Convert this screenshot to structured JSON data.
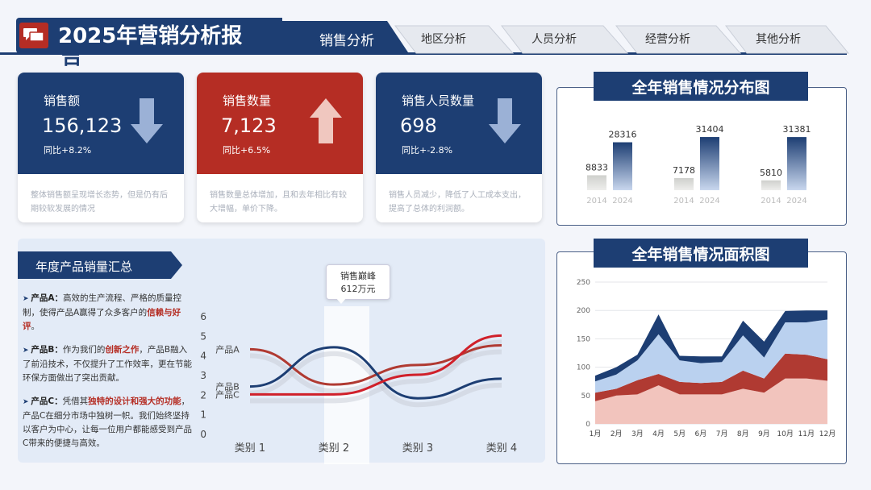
{
  "header": {
    "title": "2025年营销分析报",
    "title_tail": "告",
    "tabs": [
      {
        "label": "销售分析",
        "active": true
      },
      {
        "label": "地区分析"
      },
      {
        "label": "人员分析"
      },
      {
        "label": "经营分析"
      },
      {
        "label": "其他分析"
      }
    ]
  },
  "kpis": [
    {
      "label": "销售额",
      "value": "156,123",
      "yoy": "同比+8.2%",
      "desc": "整体销售额呈现增长态势，但是仍有后期较软发展的情况",
      "trend": "down",
      "color": "#1d3e73"
    },
    {
      "label": "销售数量",
      "value": "7,123",
      "yoy": "同比+6.5%",
      "desc": "销售数量总体增加，且和去年相比有较大增幅，单价下降。",
      "trend": "up",
      "color": "#b52d24"
    },
    {
      "label": "销售人员数量",
      "value": "698",
      "yoy": "同比+-2.8%",
      "desc": "销售人员减少，降低了人工成本支出，提高了总体的利润额。",
      "trend": "down",
      "color": "#1d3e73"
    }
  ],
  "products": {
    "title": "年度产品销量汇总",
    "items": [
      {
        "name": "产品A：",
        "segments": [
          {
            "text": "高效的生产流程、严格的质量控制，使得产品A赢得了众多客户的"
          },
          {
            "text": "信赖与好评",
            "red": true
          },
          {
            "text": "。"
          }
        ]
      },
      {
        "name": "产品B：",
        "segments": [
          {
            "text": "作为我们的"
          },
          {
            "text": "创新之作",
            "red": true
          },
          {
            "text": "，产品B融入了前沿技术，不仅提升了工作效率，更在节能环保方面做出了突出贡献。"
          }
        ]
      },
      {
        "name": "产品C：",
        "segments": [
          {
            "text": "凭借其"
          },
          {
            "text": "独特的设计和强大的功能",
            "red": true
          },
          {
            "text": "，产品C在细分市场中独树一帜。我们始终坚持以客户为中心，让每一位用户都能感受到产品C带来的便捷与高效。"
          }
        ]
      }
    ],
    "peak_label": "销售巅峰",
    "peak_value": "612万元"
  },
  "dist_title": "全年销售情况分布图",
  "area_title": "全年销售情况面积图",
  "chart_data": [
    {
      "type": "line",
      "categories": [
        "类别 1",
        "类别 2",
        "类别 3",
        "类别 4"
      ],
      "ylim": [
        0,
        6
      ],
      "yticks": [
        0,
        1,
        2,
        3,
        4,
        5,
        6
      ],
      "series": [
        {
          "name": "产品A",
          "values": [
            4.3,
            2.5,
            3.5,
            4.5
          ],
          "color": "#b03a32"
        },
        {
          "name": "产品B",
          "values": [
            2.4,
            4.4,
            1.8,
            2.8
          ],
          "color": "#1d3e73"
        },
        {
          "name": "产品C",
          "values": [
            2.0,
            2.0,
            3.0,
            5.0
          ],
          "color": "#d0202a"
        }
      ]
    },
    {
      "type": "bar",
      "groups": [
        {
          "values": [
            8833,
            28316
          ],
          "labels": [
            "8833",
            "28316"
          ]
        },
        {
          "values": [
            7178,
            31404
          ],
          "labels": [
            "7178",
            "31404"
          ]
        },
        {
          "values": [
            5810,
            31381
          ],
          "labels": [
            "5810",
            "31381"
          ]
        }
      ],
      "categories": [
        "2014",
        "2024"
      ],
      "ylim": [
        0,
        35000
      ]
    },
    {
      "type": "area",
      "x": [
        "1月",
        "2月",
        "3月",
        "4月",
        "5月",
        "6月",
        "7月",
        "8月",
        "9月",
        "10月",
        "11月",
        "12月"
      ],
      "ylim": [
        0,
        250
      ],
      "yticks": [
        0,
        50,
        100,
        150,
        200,
        250
      ],
      "series": [
        {
          "values": [
            40,
            50,
            52,
            68,
            52,
            52,
            52,
            62,
            55,
            80,
            80,
            76
          ],
          "color": "#f2c4bd"
        },
        {
          "values": [
            15,
            12,
            25,
            20,
            22,
            20,
            22,
            32,
            25,
            44,
            42,
            38
          ],
          "color": "#b03a32"
        },
        {
          "values": [
            20,
            25,
            35,
            70,
            38,
            35,
            35,
            62,
            37,
            55,
            57,
            70
          ],
          "color": "#bad1ef"
        },
        {
          "values": [
            10,
            13,
            10,
            35,
            8,
            12,
            10,
            26,
            28,
            20,
            21,
            16
          ],
          "color": "#1d3e73"
        }
      ]
    }
  ]
}
